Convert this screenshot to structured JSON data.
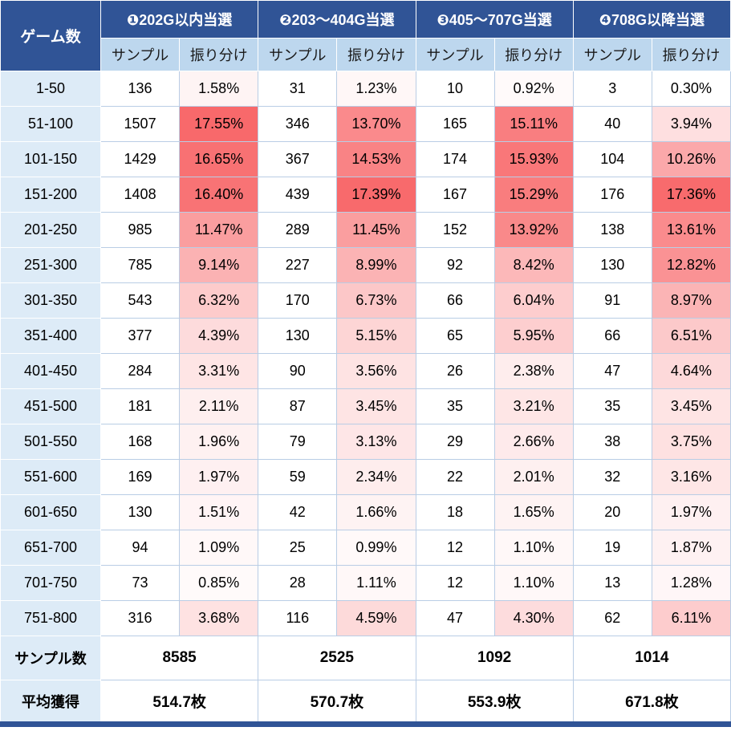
{
  "colors": {
    "header_bg": "#305496",
    "subheader_bg": "#BDD7EE",
    "label_bg": "#DDEBF7",
    "border": "#B9CDE5",
    "header_text": "#FFFFFF",
    "heat_max": "#F8696B",
    "heat_min": "#FFFFFF"
  },
  "chart_data": {
    "type": "table",
    "title": "",
    "corner_label": "ゲーム数",
    "group_headers": [
      "❶202G以内当選",
      "❷203〜404G当選",
      "❸405〜707G当選",
      "❹708G以降当選"
    ],
    "sub_headers": [
      "サンプル",
      "振り分け"
    ],
    "heatmap": {
      "min": 0.3,
      "max": 17.55,
      "min_color": "#FFFFFF",
      "max_color": "#F8696B"
    },
    "rows": [
      {
        "label": "1-50",
        "cells": [
          {
            "sample": 136,
            "dist": "1.58%"
          },
          {
            "sample": 31,
            "dist": "1.23%"
          },
          {
            "sample": 10,
            "dist": "0.92%"
          },
          {
            "sample": 3,
            "dist": "0.30%"
          }
        ]
      },
      {
        "label": "51-100",
        "cells": [
          {
            "sample": 1507,
            "dist": "17.55%"
          },
          {
            "sample": 346,
            "dist": "13.70%"
          },
          {
            "sample": 165,
            "dist": "15.11%"
          },
          {
            "sample": 40,
            "dist": "3.94%"
          }
        ]
      },
      {
        "label": "101-150",
        "cells": [
          {
            "sample": 1429,
            "dist": "16.65%"
          },
          {
            "sample": 367,
            "dist": "14.53%"
          },
          {
            "sample": 174,
            "dist": "15.93%"
          },
          {
            "sample": 104,
            "dist": "10.26%"
          }
        ]
      },
      {
        "label": "151-200",
        "cells": [
          {
            "sample": 1408,
            "dist": "16.40%"
          },
          {
            "sample": 439,
            "dist": "17.39%"
          },
          {
            "sample": 167,
            "dist": "15.29%"
          },
          {
            "sample": 176,
            "dist": "17.36%"
          }
        ]
      },
      {
        "label": "201-250",
        "cells": [
          {
            "sample": 985,
            "dist": "11.47%"
          },
          {
            "sample": 289,
            "dist": "11.45%"
          },
          {
            "sample": 152,
            "dist": "13.92%"
          },
          {
            "sample": 138,
            "dist": "13.61%"
          }
        ]
      },
      {
        "label": "251-300",
        "cells": [
          {
            "sample": 785,
            "dist": "9.14%"
          },
          {
            "sample": 227,
            "dist": "8.99%"
          },
          {
            "sample": 92,
            "dist": "8.42%"
          },
          {
            "sample": 130,
            "dist": "12.82%"
          }
        ]
      },
      {
        "label": "301-350",
        "cells": [
          {
            "sample": 543,
            "dist": "6.32%"
          },
          {
            "sample": 170,
            "dist": "6.73%"
          },
          {
            "sample": 66,
            "dist": "6.04%"
          },
          {
            "sample": 91,
            "dist": "8.97%"
          }
        ]
      },
      {
        "label": "351-400",
        "cells": [
          {
            "sample": 377,
            "dist": "4.39%"
          },
          {
            "sample": 130,
            "dist": "5.15%"
          },
          {
            "sample": 65,
            "dist": "5.95%"
          },
          {
            "sample": 66,
            "dist": "6.51%"
          }
        ]
      },
      {
        "label": "401-450",
        "cells": [
          {
            "sample": 284,
            "dist": "3.31%"
          },
          {
            "sample": 90,
            "dist": "3.56%"
          },
          {
            "sample": 26,
            "dist": "2.38%"
          },
          {
            "sample": 47,
            "dist": "4.64%"
          }
        ]
      },
      {
        "label": "451-500",
        "cells": [
          {
            "sample": 181,
            "dist": "2.11%"
          },
          {
            "sample": 87,
            "dist": "3.45%"
          },
          {
            "sample": 35,
            "dist": "3.21%"
          },
          {
            "sample": 35,
            "dist": "3.45%"
          }
        ]
      },
      {
        "label": "501-550",
        "cells": [
          {
            "sample": 168,
            "dist": "1.96%"
          },
          {
            "sample": 79,
            "dist": "3.13%"
          },
          {
            "sample": 29,
            "dist": "2.66%"
          },
          {
            "sample": 38,
            "dist": "3.75%"
          }
        ]
      },
      {
        "label": "551-600",
        "cells": [
          {
            "sample": 169,
            "dist": "1.97%"
          },
          {
            "sample": 59,
            "dist": "2.34%"
          },
          {
            "sample": 22,
            "dist": "2.01%"
          },
          {
            "sample": 32,
            "dist": "3.16%"
          }
        ]
      },
      {
        "label": "601-650",
        "cells": [
          {
            "sample": 130,
            "dist": "1.51%"
          },
          {
            "sample": 42,
            "dist": "1.66%"
          },
          {
            "sample": 18,
            "dist": "1.65%"
          },
          {
            "sample": 20,
            "dist": "1.97%"
          }
        ]
      },
      {
        "label": "651-700",
        "cells": [
          {
            "sample": 94,
            "dist": "1.09%"
          },
          {
            "sample": 25,
            "dist": "0.99%"
          },
          {
            "sample": 12,
            "dist": "1.10%"
          },
          {
            "sample": 19,
            "dist": "1.87%"
          }
        ]
      },
      {
        "label": "701-750",
        "cells": [
          {
            "sample": 73,
            "dist": "0.85%"
          },
          {
            "sample": 28,
            "dist": "1.11%"
          },
          {
            "sample": 12,
            "dist": "1.10%"
          },
          {
            "sample": 13,
            "dist": "1.28%"
          }
        ]
      },
      {
        "label": "751-800",
        "cells": [
          {
            "sample": 316,
            "dist": "3.68%"
          },
          {
            "sample": 116,
            "dist": "4.59%"
          },
          {
            "sample": 47,
            "dist": "4.30%"
          },
          {
            "sample": 62,
            "dist": "6.11%"
          }
        ]
      }
    ],
    "footer_rows": [
      {
        "label": "サンプル数",
        "values": [
          "8585",
          "2525",
          "1092",
          "1014"
        ]
      },
      {
        "label": "平均獲得",
        "values": [
          "514.7枚",
          "570.7枚",
          "553.9枚",
          "671.8枚"
        ]
      }
    ]
  }
}
